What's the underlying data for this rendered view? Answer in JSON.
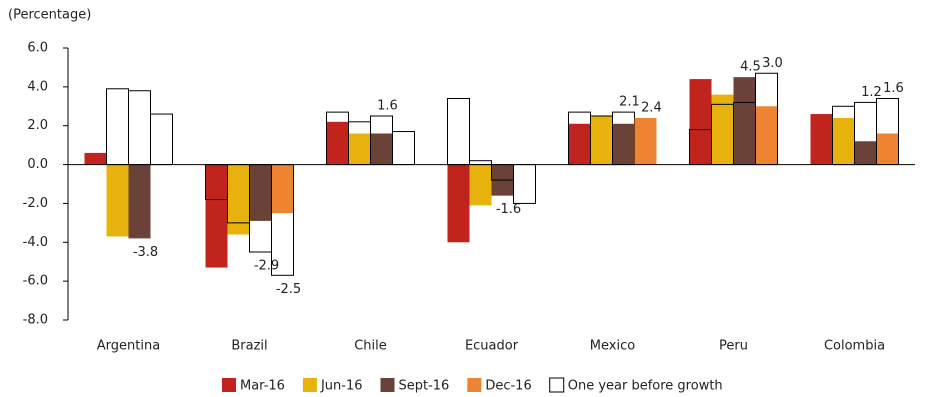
{
  "chart_data": {
    "type": "bar",
    "subtitle": "(Percentage)",
    "categories": [
      "Argentina",
      "Brazil",
      "Chile",
      "Ecuador",
      "Mexico",
      "Peru",
      "Colombia"
    ],
    "series": [
      {
        "name": "Mar-16",
        "color": "#c0241c",
        "values": [
          0.6,
          -5.3,
          2.2,
          -4.0,
          2.1,
          4.4,
          2.6
        ]
      },
      {
        "name": "Jun-16",
        "color": "#e8b20e",
        "values": [
          -3.7,
          -3.6,
          1.6,
          -2.1,
          2.5,
          3.6,
          2.4
        ]
      },
      {
        "name": "Sept-16",
        "color": "#6b4238",
        "values": [
          -3.8,
          -2.9,
          1.6,
          -1.6,
          2.1,
          4.5,
          1.2
        ],
        "value_labels": [
          "-3.8",
          "-2.9",
          "1.6",
          "-1.6",
          "2.1",
          "4.5",
          "1.2"
        ]
      },
      {
        "name": "Dec-16",
        "color": "#ee8331",
        "values": [
          null,
          -2.5,
          null,
          null,
          2.4,
          3.0,
          1.6
        ],
        "value_labels": [
          null,
          "-2.5",
          null,
          null,
          "2.4",
          "3.0",
          "1.6"
        ]
      },
      {
        "name": "One year before growth",
        "color": "#ffffff",
        "values": [
          [
            null,
            3.9,
            3.8,
            2.6
          ],
          [
            -1.8,
            -3.0,
            -4.5,
            -5.7
          ],
          [
            2.7,
            2.2,
            2.5,
            1.7
          ],
          [
            3.4,
            0.2,
            -0.8,
            -2.0
          ],
          [
            2.7,
            2.5,
            2.7,
            null
          ],
          [
            1.8,
            3.1,
            3.2,
            4.7
          ],
          [
            null,
            3.0,
            3.2,
            3.4
          ]
        ]
      }
    ],
    "ylim": [
      -8.0,
      6.0
    ],
    "yticks": [
      {
        "value": 6,
        "label": "6.0"
      },
      {
        "value": 4,
        "label": "4.0"
      },
      {
        "value": 2,
        "label": "2.0"
      },
      {
        "value": 0,
        "label": "0.0"
      },
      {
        "value": -2,
        "label": "-2.0"
      },
      {
        "value": -4,
        "label": "-4.0"
      },
      {
        "value": -6,
        "label": "-6.0"
      },
      {
        "value": -8,
        "label": "-8.0"
      }
    ],
    "legend": "bottom"
  }
}
